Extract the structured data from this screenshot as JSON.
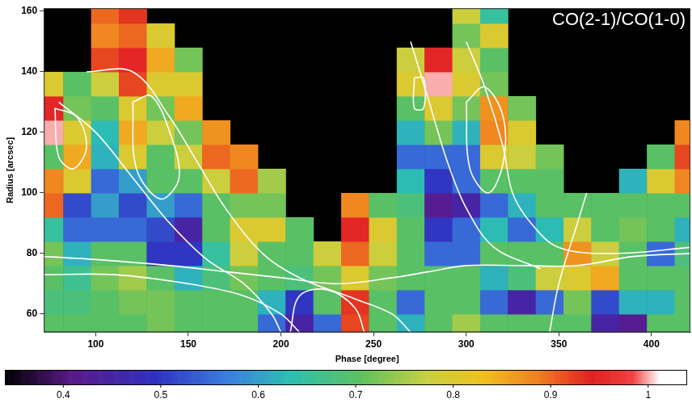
{
  "chart_data": {
    "type": "heatmap",
    "title": "CO(2-1)/CO(1-0)",
    "xlabel": "Phase [degree]",
    "ylabel": "Radius [arcsec]",
    "xlim": [
      72,
      421
    ],
    "ylim": [
      54,
      161
    ],
    "xticks": [
      100,
      150,
      200,
      250,
      300,
      350,
      400
    ],
    "yticks": [
      60,
      80,
      100,
      120,
      140,
      160
    ],
    "grid": false,
    "x": [
      75,
      90,
      105,
      120,
      135,
      150,
      165,
      180,
      195,
      210,
      225,
      240,
      255,
      270,
      285,
      300,
      315,
      330,
      345,
      360,
      375,
      390,
      405,
      420
    ],
    "y": [
      56,
      64,
      72,
      80,
      88,
      96,
      104,
      112,
      120,
      128,
      136,
      144,
      152,
      160
    ],
    "cells": [
      [
        0.7,
        0.7,
        0.7,
        0.7,
        0.72,
        0.7,
        0.7,
        0.7,
        0.55,
        0.45,
        0.55,
        0.92,
        0.7,
        0.62,
        0.7,
        0.75,
        0.7,
        0.7,
        0.7,
        0.7,
        0.45,
        0.42,
        0.7,
        0.7
      ],
      [
        0.68,
        0.68,
        0.7,
        0.72,
        0.72,
        0.7,
        0.7,
        0.7,
        0.62,
        0.5,
        0.7,
        0.93,
        0.7,
        0.55,
        0.7,
        0.7,
        0.55,
        0.45,
        0.55,
        0.72,
        0.52,
        0.62,
        0.62,
        0.7
      ],
      [
        0.7,
        0.66,
        0.72,
        0.75,
        0.7,
        0.62,
        0.68,
        0.72,
        0.7,
        0.68,
        0.72,
        0.8,
        0.72,
        0.7,
        0.7,
        0.7,
        0.62,
        0.68,
        0.78,
        0.8,
        0.85,
        0.7,
        0.7,
        0.7
      ],
      [
        0.72,
        0.62,
        0.7,
        0.7,
        0.5,
        0.5,
        0.65,
        0.78,
        0.7,
        0.7,
        0.78,
        0.9,
        0.78,
        0.7,
        0.55,
        0.55,
        0.7,
        0.7,
        0.7,
        0.87,
        0.78,
        0.7,
        0.55,
        0.68
      ],
      [
        0.65,
        0.55,
        0.55,
        0.55,
        0.52,
        0.45,
        0.7,
        0.8,
        0.8,
        0.7,
        null,
        0.95,
        0.8,
        0.7,
        0.5,
        0.55,
        0.63,
        0.55,
        0.63,
        0.78,
        0.7,
        0.72,
        0.7,
        0.62
      ],
      [
        0.9,
        0.52,
        0.6,
        0.52,
        0.6,
        0.55,
        0.7,
        0.72,
        0.72,
        null,
        null,
        0.88,
        0.7,
        0.68,
        0.42,
        0.45,
        0.55,
        0.62,
        0.7,
        0.7,
        0.7,
        0.7,
        0.7,
        0.7
      ],
      [
        0.88,
        0.8,
        0.55,
        0.6,
        0.7,
        0.7,
        0.78,
        0.9,
        0.75,
        null,
        null,
        null,
        null,
        0.63,
        0.5,
        0.55,
        0.7,
        0.7,
        0.7,
        null,
        null,
        0.62,
        0.8,
        0.88
      ],
      [
        0.7,
        0.85,
        0.62,
        0.8,
        0.7,
        0.78,
        0.9,
        0.88,
        null,
        null,
        null,
        null,
        null,
        0.55,
        0.55,
        0.55,
        0.8,
        0.78,
        0.72,
        null,
        null,
        null,
        0.7,
        0.92
      ],
      [
        1.0,
        0.8,
        0.63,
        0.85,
        0.78,
        0.72,
        0.87,
        null,
        null,
        null,
        null,
        null,
        null,
        0.62,
        0.72,
        0.62,
        0.88,
        0.8,
        null,
        null,
        null,
        null,
        null,
        0.88
      ],
      [
        0.95,
        0.72,
        0.7,
        0.8,
        0.72,
        0.85,
        null,
        null,
        null,
        null,
        null,
        null,
        null,
        0.7,
        0.8,
        0.72,
        0.87,
        0.72,
        null,
        null,
        null,
        null,
        null,
        null
      ],
      [
        0.8,
        0.7,
        0.78,
        0.92,
        0.8,
        0.8,
        null,
        null,
        null,
        null,
        null,
        null,
        null,
        0.8,
        1.0,
        0.8,
        0.72,
        null,
        null,
        null,
        null,
        null,
        null,
        null
      ],
      [
        null,
        null,
        0.92,
        0.95,
        0.85,
        0.72,
        null,
        null,
        null,
        null,
        null,
        null,
        null,
        0.78,
        0.95,
        0.78,
        0.7,
        null,
        null,
        null,
        null,
        null,
        null,
        null
      ],
      [
        null,
        null,
        0.88,
        0.9,
        0.8,
        null,
        null,
        null,
        null,
        null,
        null,
        null,
        null,
        null,
        null,
        0.72,
        0.8,
        null,
        null,
        null,
        null,
        null,
        null,
        null
      ],
      [
        null,
        null,
        0.9,
        0.93,
        null,
        null,
        null,
        null,
        null,
        null,
        null,
        null,
        null,
        null,
        null,
        0.78,
        0.65,
        null,
        null,
        null,
        null,
        null,
        null,
        null
      ]
    ],
    "colorbar": {
      "range": [
        0.34,
        1.04
      ],
      "ticks": [
        0.4,
        0.5,
        0.6,
        0.7,
        0.8,
        0.9,
        1
      ]
    },
    "series": [
      {
        "type": "line",
        "color": "#ffffff",
        "values": [
          [
            72,
            79
          ],
          [
            100,
            78
          ],
          [
            140,
            76
          ],
          [
            170,
            74
          ],
          [
            200,
            72
          ],
          [
            230,
            70
          ],
          [
            260,
            72
          ],
          [
            280,
            74
          ],
          [
            300,
            76
          ],
          [
            330,
            76
          ],
          [
            360,
            76
          ],
          [
            390,
            79
          ],
          [
            421,
            80
          ]
        ]
      },
      {
        "type": "line",
        "color": "#ffffff",
        "values": [
          [
            72,
            73
          ],
          [
            110,
            73
          ],
          [
            150,
            70
          ],
          [
            180,
            66
          ],
          [
            200,
            60
          ],
          [
            210,
            54
          ]
        ]
      },
      {
        "type": "line",
        "color": "#ffffff",
        "values": [
          [
            80,
            130
          ],
          [
            100,
            120
          ],
          [
            120,
            105
          ],
          [
            140,
            90
          ],
          [
            160,
            78
          ],
          [
            180,
            70
          ],
          [
            195,
            60
          ],
          [
            200,
            54
          ]
        ]
      },
      {
        "type": "line",
        "color": "#ffffff",
        "values": [
          [
            95,
            140
          ],
          [
            120,
            140
          ],
          [
            140,
            125
          ],
          [
            155,
            110
          ],
          [
            170,
            95
          ],
          [
            190,
            80
          ],
          [
            210,
            72
          ],
          [
            240,
            65
          ],
          [
            260,
            60
          ],
          [
            270,
            54
          ]
        ]
      },
      {
        "type": "line",
        "color": "#ffffff",
        "values": [
          [
            120,
            130
          ],
          [
            130,
            132
          ],
          [
            140,
            120
          ],
          [
            145,
            105
          ],
          [
            135,
            98
          ],
          [
            122,
            108
          ],
          [
            120,
            130
          ]
        ]
      },
      {
        "type": "line",
        "color": "#ffffff",
        "values": [
          [
            78,
            128
          ],
          [
            90,
            125
          ],
          [
            95,
            115
          ],
          [
            88,
            108
          ],
          [
            80,
            112
          ],
          [
            78,
            128
          ]
        ]
      },
      {
        "type": "line",
        "color": "#ffffff",
        "values": [
          [
            270,
            150
          ],
          [
            280,
            130
          ],
          [
            290,
            110
          ],
          [
            300,
            95
          ],
          [
            315,
            82
          ],
          [
            340,
            75
          ]
        ]
      },
      {
        "type": "line",
        "color": "#ffffff",
        "values": [
          [
            300,
            150
          ],
          [
            310,
            135
          ],
          [
            320,
            115
          ],
          [
            325,
            100
          ],
          [
            335,
            90
          ],
          [
            350,
            82
          ],
          [
            380,
            80
          ],
          [
            421,
            82
          ]
        ]
      },
      {
        "type": "line",
        "color": "#ffffff",
        "values": [
          [
            300,
            130
          ],
          [
            310,
            135
          ],
          [
            320,
            125
          ],
          [
            320,
            110
          ],
          [
            312,
            100
          ],
          [
            302,
            108
          ],
          [
            300,
            130
          ]
        ]
      },
      {
        "type": "line",
        "color": "#ffffff",
        "values": [
          [
            272,
            138
          ],
          [
            277,
            138
          ],
          [
            277,
            128
          ],
          [
            272,
            128
          ],
          [
            272,
            138
          ]
        ]
      },
      {
        "type": "line",
        "color": "#ffffff",
        "values": [
          [
            345,
            54
          ],
          [
            350,
            70
          ],
          [
            360,
            90
          ],
          [
            365,
            100
          ]
        ]
      },
      {
        "type": "line",
        "color": "#ffffff",
        "values": [
          [
            205,
            54
          ],
          [
            210,
            66
          ],
          [
            225,
            68
          ],
          [
            240,
            62
          ],
          [
            245,
            54
          ]
        ]
      }
    ]
  }
}
